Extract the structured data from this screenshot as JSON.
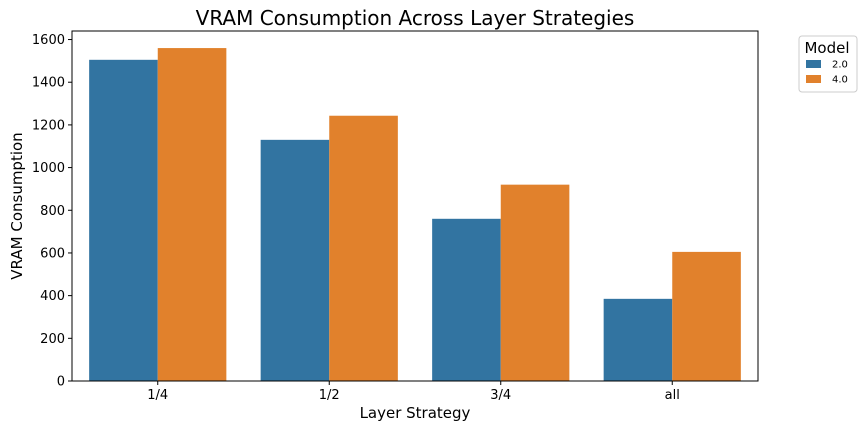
{
  "chart_data": {
    "type": "bar",
    "title": "VRAM Consumption Across Layer Strategies",
    "xlabel": "Layer Strategy",
    "ylabel": "VRAM Consumption",
    "categories": [
      "1/4",
      "1/2",
      "3/4",
      "all"
    ],
    "series": [
      {
        "name": "2.0",
        "color": "#3274a1",
        "values": [
          1505,
          1130,
          760,
          385
        ]
      },
      {
        "name": "4.0",
        "color": "#e1812c",
        "values": [
          1560,
          1243,
          920,
          605
        ]
      }
    ],
    "ylim": [
      0,
      1640
    ],
    "yticks": [
      0,
      200,
      400,
      600,
      800,
      1000,
      1200,
      1400,
      1600
    ],
    "grid": false,
    "legend": {
      "title": "Model",
      "placement": "outside-top-right"
    }
  }
}
